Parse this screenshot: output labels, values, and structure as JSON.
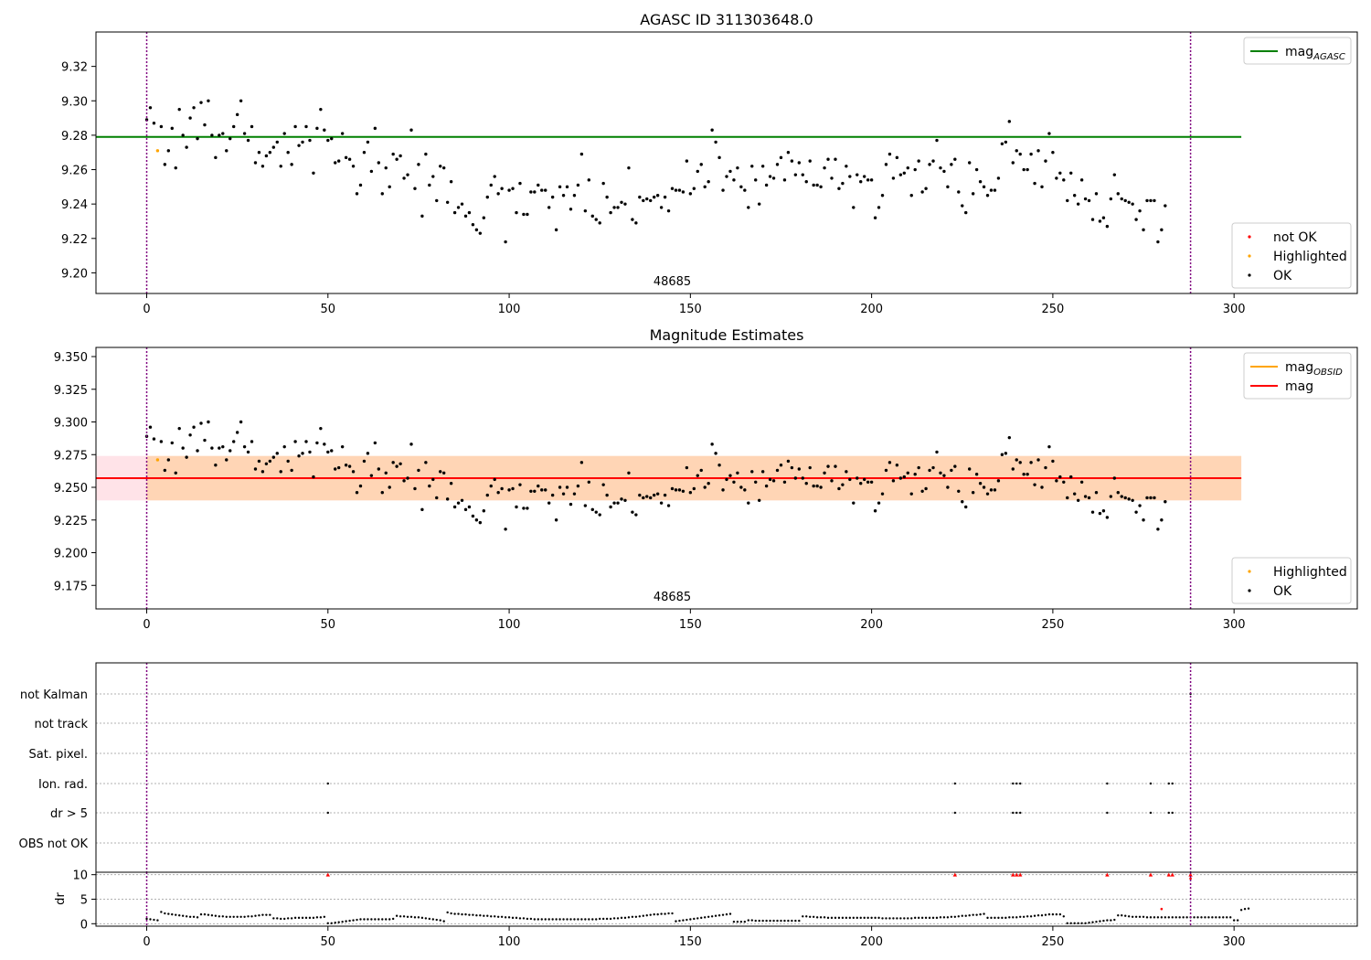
{
  "chart_data": [
    {
      "type": "scatter",
      "title": "AGASC ID 311303648.0",
      "xlim": [
        -14,
        334
      ],
      "ylim": [
        9.188,
        9.34
      ],
      "yticks": [
        9.2,
        9.22,
        9.24,
        9.26,
        9.28,
        9.3,
        9.32
      ],
      "ytick_decimals": 2,
      "xticks": [
        0,
        50,
        100,
        150,
        200,
        250,
        300
      ],
      "obsid_label": "48685",
      "obs_boundaries": [
        0,
        288
      ],
      "reference_lines": [
        {
          "name": "mag_AGASC",
          "y": 9.279,
          "x_range": [
            -14,
            302
          ],
          "color": "#008000"
        }
      ],
      "legends": [
        {
          "position": "top-right",
          "items": [
            {
              "marker": "line",
              "color": "#008000",
              "label": "mag",
              "sub": "AGASC"
            }
          ]
        },
        {
          "position": "bottom-right",
          "items": [
            {
              "marker": "dot",
              "color": "#ff0000",
              "label": "not OK"
            },
            {
              "marker": "dot",
              "color": "#ffa500",
              "label": "Highlighted"
            },
            {
              "marker": "dot",
              "color": "#000000",
              "label": "OK"
            }
          ]
        }
      ],
      "series_ref": "mag"
    },
    {
      "type": "scatter",
      "title": "Magnitude Estimates",
      "xlim": [
        -14,
        334
      ],
      "ylim": [
        9.157,
        9.357
      ],
      "yticks": [
        9.175,
        9.2,
        9.225,
        9.25,
        9.275,
        9.3,
        9.325,
        9.35
      ],
      "ytick_decimals": 3,
      "xticks": [
        0,
        50,
        100,
        150,
        200,
        250,
        300
      ],
      "obsid_label": "48685",
      "obs_boundaries": [
        0,
        288
      ],
      "bands": [
        {
          "y0": 9.24,
          "y1": 9.274,
          "x_range": [
            -14,
            302
          ],
          "color": "#ffc0cb",
          "opacity": 0.45
        },
        {
          "y0": 9.24,
          "y1": 9.274,
          "x_range": [
            0,
            302
          ],
          "color": "#ffa500",
          "opacity": 0.22
        }
      ],
      "reference_lines": [
        {
          "name": "mag_OBSID",
          "y": 9.257,
          "x_range": [
            0,
            302
          ],
          "color": "#ffa500"
        },
        {
          "name": "mag",
          "y": 9.257,
          "x_range": [
            -14,
            302
          ],
          "color": "#ff0000"
        }
      ],
      "legends": [
        {
          "position": "top-right",
          "items": [
            {
              "marker": "line",
              "color": "#ffa500",
              "label": "mag",
              "sub": "OBSID"
            },
            {
              "marker": "line",
              "color": "#ff0000",
              "label": "mag"
            }
          ]
        },
        {
          "position": "bottom-right",
          "items": [
            {
              "marker": "dot",
              "color": "#ffa500",
              "label": "Highlighted"
            },
            {
              "marker": "dot",
              "color": "#000000",
              "label": "OK"
            }
          ]
        }
      ],
      "series_ref": "mag"
    },
    {
      "type": "scatter",
      "title": "",
      "flag_categories": [
        "not Kalman",
        "not track",
        "Sat. pixel.",
        "Ion. rad.",
        "dr > 5",
        "OBS not OK"
      ],
      "flags": {
        "not Kalman": [
          288
        ],
        "not track": [],
        "Sat. pixel.": [],
        "Ion. rad.": [
          50,
          223,
          239,
          240,
          241,
          265,
          277,
          282,
          283
        ],
        "dr > 5": [
          50,
          223,
          239,
          240,
          241,
          265,
          277,
          282,
          283
        ],
        "OBS not OK": []
      },
      "dr_ylabel": "dr",
      "dr_yticks": [
        0,
        5,
        10
      ],
      "dr_ylim": [
        -0.5,
        10.5
      ],
      "dr_clipped_at": 10,
      "dr_clipped_x": [
        50,
        223,
        239,
        240,
        241,
        265,
        277,
        282,
        283,
        288
      ],
      "dr_red_points": [
        [
          280,
          3.0
        ],
        [
          288,
          9.2
        ]
      ],
      "xlim": [
        -14,
        334
      ],
      "xticks": [
        0,
        50,
        100,
        150,
        200,
        250,
        300
      ],
      "obs_boundaries": [
        0,
        288
      ]
    }
  ],
  "series": {
    "mag": [
      9.289,
      9.296,
      9.287,
      9.271,
      9.285,
      9.263,
      9.271,
      9.284,
      9.261,
      9.295,
      9.28,
      9.273,
      9.29,
      9.296,
      9.278,
      9.299,
      9.286,
      9.3,
      9.28,
      9.267,
      9.28,
      9.281,
      9.271,
      9.278,
      9.285,
      9.292,
      9.3,
      9.281,
      9.277,
      9.285,
      9.264,
      9.27,
      9.262,
      9.268,
      9.27,
      9.273,
      9.276,
      9.262,
      9.281,
      9.27,
      9.263,
      9.285,
      9.274,
      9.276,
      9.285,
      9.277,
      9.258,
      9.284,
      9.295,
      9.283,
      9.277,
      9.278,
      9.264,
      9.265,
      9.281,
      9.267,
      9.266,
      9.262,
      9.246,
      9.251,
      9.27,
      9.276,
      9.259,
      9.284,
      9.264,
      9.246,
      9.261,
      9.25,
      9.269,
      9.266,
      9.268,
      9.255,
      9.257,
      9.283,
      9.249,
      9.263,
      9.233,
      9.269,
      9.251,
      9.256,
      9.242,
      9.262,
      9.261,
      9.241,
      9.253,
      9.235,
      9.238,
      9.24,
      9.233,
      9.235,
      9.228,
      9.225,
      9.223,
      9.232,
      9.244,
      9.251,
      9.256,
      9.246,
      9.249,
      9.218,
      9.248,
      9.249,
      9.235,
      9.252,
      9.234,
      9.234,
      9.247,
      9.247,
      9.251,
      9.248,
      9.248,
      9.238,
      9.244,
      9.225,
      9.25,
      9.245,
      9.25,
      9.237,
      9.245,
      9.251,
      9.269,
      9.236,
      9.254,
      9.233,
      9.231,
      9.229,
      9.252,
      9.244,
      9.235,
      9.238,
      9.238,
      9.241,
      9.24,
      9.261,
      9.231,
      9.229,
      9.244,
      9.242,
      9.243,
      9.242,
      9.244,
      9.245,
      9.238,
      9.244,
      9.236,
      9.249,
      9.248,
      9.248,
      9.247,
      9.265,
      9.246,
      9.249,
      9.259,
      9.263,
      9.25,
      9.253,
      9.283,
      9.276,
      9.267,
      9.248,
      9.256,
      9.259,
      9.254,
      9.261,
      9.25,
      9.248,
      9.238,
      9.262,
      9.254,
      9.24,
      9.262,
      9.251,
      9.256,
      9.255,
      9.263,
      9.267,
      9.254,
      9.27,
      9.265,
      9.257,
      9.264,
      9.257,
      9.253,
      9.265,
      9.251,
      9.251,
      9.25,
      9.261,
      9.266,
      9.255,
      9.266,
      9.249,
      9.252,
      9.262,
      9.256,
      9.238,
      9.257,
      9.253,
      9.256,
      9.254,
      9.254,
      9.232,
      9.238,
      9.245,
      9.263,
      9.269,
      9.255,
      9.267,
      9.257,
      9.258,
      9.261,
      9.245,
      9.26,
      9.265,
      9.247,
      9.249,
      9.263,
      9.265,
      9.277,
      9.261,
      9.259,
      9.25,
      9.263,
      9.266,
      9.247,
      9.239,
      9.235,
      9.264,
      9.246,
      9.26,
      9.253,
      9.25,
      9.245,
      9.248,
      9.248,
      9.255,
      9.275,
      9.276,
      9.288,
      9.264,
      9.271,
      9.269,
      9.26,
      9.26,
      9.269,
      9.252,
      9.271,
      9.25,
      9.265,
      9.281,
      9.27,
      9.255,
      9.258,
      9.254,
      9.242,
      9.258,
      9.245,
      9.24,
      9.254,
      9.243,
      9.242,
      9.231,
      9.246,
      9.23,
      9.232,
      9.227,
      9.243,
      9.257,
      9.246,
      9.243,
      9.242,
      9.241,
      9.24,
      9.231,
      9.236,
      9.225,
      9.242,
      9.242,
      9.242,
      9.218,
      9.225,
      9.239
    ],
    "dr": [
      1.0,
      0.9,
      0.8,
      0.7,
      2.4,
      2.1,
      2.0,
      1.9,
      1.8,
      1.7,
      1.6,
      1.5,
      1.4,
      1.4,
      1.3,
      1.9,
      1.9,
      1.8,
      1.7,
      1.6,
      1.5,
      1.5,
      1.4,
      1.4,
      1.4,
      1.4,
      1.4,
      1.4,
      1.5,
      1.5,
      1.6,
      1.7,
      1.8,
      1.8,
      1.8,
      1.1,
      1.1,
      1.0,
      1.0,
      1.1,
      1.1,
      1.2,
      1.2,
      1.2,
      1.2,
      1.2,
      1.2,
      1.3,
      1.3,
      1.4,
      0.1,
      0.1,
      0.2,
      0.3,
      0.4,
      0.5,
      0.6,
      0.7,
      0.8,
      0.9,
      0.9,
      0.9,
      0.9,
      0.9,
      0.9,
      0.9,
      0.9,
      0.9,
      1.0,
      1.6,
      1.5,
      1.5,
      1.4,
      1.4,
      1.3,
      1.3,
      1.2,
      1.1,
      1.0,
      0.9,
      0.8,
      0.7,
      0.5,
      2.3,
      2.1,
      2.0,
      2.0,
      1.9,
      1.9,
      1.8,
      1.8,
      1.7,
      1.7,
      1.6,
      1.6,
      1.5,
      1.5,
      1.4,
      1.4,
      1.3,
      1.3,
      1.2,
      1.2,
      1.1,
      1.1,
      1.0,
      1.0,
      0.9,
      0.9,
      0.9,
      0.9,
      0.9,
      0.9,
      0.9,
      0.9,
      0.9,
      0.9,
      0.9,
      0.9,
      0.9,
      0.9,
      0.9,
      0.9,
      0.9,
      0.9,
      1.0,
      1.0,
      1.0,
      1.0,
      1.1,
      1.1,
      1.2,
      1.2,
      1.3,
      1.4,
      1.4,
      1.5,
      1.6,
      1.7,
      1.8,
      1.9,
      1.9,
      2.0,
      2.0,
      2.1,
      2.1,
      0.5,
      0.6,
      0.7,
      0.8,
      0.9,
      1.0,
      1.1,
      1.2,
      1.3,
      1.4,
      1.5,
      1.6,
      1.7,
      1.8,
      1.9,
      2.0,
      0.4,
      0.4,
      0.4,
      0.4,
      0.7,
      0.7,
      0.6,
      0.6,
      0.6,
      0.6,
      0.6,
      0.6,
      0.6,
      0.6,
      0.6,
      0.6,
      0.6,
      0.6,
      0.6,
      1.5,
      1.5,
      1.4,
      1.4,
      1.3,
      1.3,
      1.3,
      1.2,
      1.2,
      1.2,
      1.2,
      1.2,
      1.2,
      1.2,
      1.2,
      1.2,
      1.2,
      1.2,
      1.2,
      1.2,
      1.2,
      1.2,
      1.1,
      1.1,
      1.1,
      1.1,
      1.1,
      1.1,
      1.1,
      1.1,
      1.1,
      1.2,
      1.2,
      1.2,
      1.2,
      1.2,
      1.2,
      1.2,
      1.3,
      1.3,
      1.3,
      1.4,
      1.4,
      1.5,
      1.6,
      1.6,
      1.7,
      1.8,
      1.8,
      1.9,
      2.0,
      1.2,
      1.2,
      1.2,
      1.2,
      1.2,
      1.2,
      1.3,
      1.3,
      1.3,
      1.4,
      1.4,
      1.5,
      1.5,
      1.6,
      1.7,
      1.7,
      1.8,
      1.9,
      1.9,
      1.9,
      1.9,
      1.5,
      0.1,
      0.1,
      0.1,
      0.1,
      0.1,
      0.1,
      0.2,
      0.3,
      0.4,
      0.5,
      0.6,
      0.7,
      0.7,
      0.8,
      1.7,
      1.7,
      1.6,
      1.5,
      1.4,
      1.4,
      1.4,
      1.4,
      1.3,
      1.3,
      1.3,
      1.3,
      1.3,
      1.3,
      1.3,
      1.3,
      1.3,
      1.3,
      1.3,
      1.3,
      1.3,
      1.3,
      1.3,
      1.3,
      1.3,
      1.3,
      1.3,
      1.3,
      1.3,
      1.3,
      1.3,
      1.3,
      0.7,
      0.7,
      2.8,
      3.0,
      3.1
    ],
    "highlighted_x": [
      3
    ]
  }
}
